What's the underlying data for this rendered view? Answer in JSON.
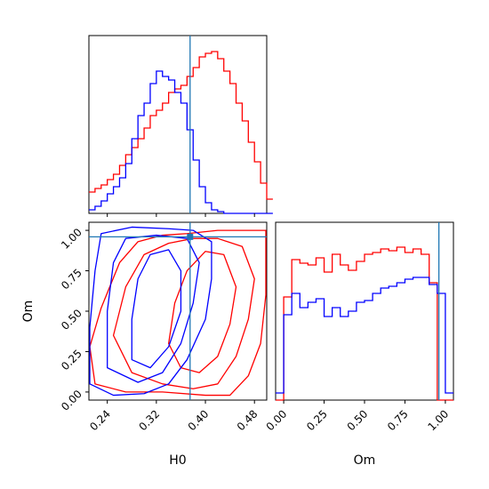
{
  "chart_data": [
    {
      "type": "histogram",
      "panel": "H0 marginal",
      "x": [
        0.21,
        0.22,
        0.23,
        0.24,
        0.25,
        0.26,
        0.27,
        0.28,
        0.29,
        0.3,
        0.31,
        0.32,
        0.33,
        0.34,
        0.35,
        0.36,
        0.37,
        0.38,
        0.39,
        0.4,
        0.41,
        0.42,
        0.43,
        0.44,
        0.45,
        0.46,
        0.47,
        0.48,
        0.49,
        0.5
      ],
      "series": [
        {
          "color": "#ff0000",
          "values": [
            0.12,
            0.14,
            0.16,
            0.19,
            0.22,
            0.27,
            0.33,
            0.37,
            0.42,
            0.48,
            0.55,
            0.58,
            0.62,
            0.68,
            0.7,
            0.72,
            0.77,
            0.82,
            0.88,
            0.9,
            0.91,
            0.87,
            0.8,
            0.73,
            0.62,
            0.52,
            0.4,
            0.29,
            0.17,
            0.08
          ]
        },
        {
          "color": "#0000ff",
          "values": [
            0.02,
            0.04,
            0.07,
            0.11,
            0.15,
            0.2,
            0.28,
            0.42,
            0.55,
            0.62,
            0.73,
            0.8,
            0.77,
            0.75,
            0.68,
            0.62,
            0.47,
            0.3,
            0.15,
            0.06,
            0.02,
            0.01,
            0.0,
            0.0,
            0.0,
            0.0,
            0.0,
            0.0,
            0.0,
            0.0
          ]
        }
      ],
      "xlim": [
        0.21,
        0.5
      ],
      "truth": 0.375
    },
    {
      "type": "contour",
      "panel": "Om vs H0",
      "xlabel": "H0",
      "ylabel": "Om",
      "xticks": [
        "0.24",
        "0.32",
        "0.40",
        "0.48"
      ],
      "yticks": [
        "0.00",
        "0.25",
        "0.50",
        "0.75",
        "1.00"
      ],
      "xlim": [
        0.21,
        0.5
      ],
      "ylim": [
        -0.05,
        1.05
      ],
      "truth": {
        "x": 0.375,
        "y": 0.96
      },
      "series": [
        {
          "color": "#ff0000",
          "levels": [
            [
              [
                0.21,
                0.28
              ],
              [
                0.23,
                0.52
              ],
              [
                0.26,
                0.8
              ],
              [
                0.29,
                0.93
              ],
              [
                0.33,
                0.97
              ],
              [
                0.37,
                0.98
              ],
              [
                0.42,
                1.0
              ],
              [
                0.46,
                1.0
              ],
              [
                0.5,
                1.0
              ],
              [
                0.5,
                0.6
              ],
              [
                0.49,
                0.3
              ],
              [
                0.47,
                0.1
              ],
              [
                0.44,
                -0.02
              ],
              [
                0.4,
                -0.02
              ],
              [
                0.33,
                0.0
              ],
              [
                0.27,
                0.0
              ],
              [
                0.22,
                0.05
              ]
            ],
            [
              [
                0.25,
                0.35
              ],
              [
                0.27,
                0.65
              ],
              [
                0.3,
                0.85
              ],
              [
                0.34,
                0.92
              ],
              [
                0.38,
                0.95
              ],
              [
                0.42,
                0.95
              ],
              [
                0.46,
                0.9
              ],
              [
                0.48,
                0.7
              ],
              [
                0.47,
                0.45
              ],
              [
                0.45,
                0.22
              ],
              [
                0.42,
                0.05
              ],
              [
                0.38,
                0.02
              ],
              [
                0.33,
                0.05
              ],
              [
                0.28,
                0.12
              ]
            ],
            [
              [
                0.34,
                0.3
              ],
              [
                0.35,
                0.55
              ],
              [
                0.37,
                0.75
              ],
              [
                0.4,
                0.87
              ],
              [
                0.43,
                0.85
              ],
              [
                0.45,
                0.65
              ],
              [
                0.44,
                0.42
              ],
              [
                0.42,
                0.22
              ],
              [
                0.39,
                0.12
              ],
              [
                0.36,
                0.15
              ]
            ]
          ]
        },
        {
          "color": "#0000ff",
          "levels": [
            [
              [
                0.21,
                0.05
              ],
              [
                0.21,
                0.4
              ],
              [
                0.22,
                0.75
              ],
              [
                0.23,
                0.98
              ],
              [
                0.28,
                1.02
              ],
              [
                0.34,
                1.01
              ],
              [
                0.38,
                1.0
              ],
              [
                0.41,
                0.93
              ],
              [
                0.41,
                0.7
              ],
              [
                0.4,
                0.45
              ],
              [
                0.37,
                0.2
              ],
              [
                0.34,
                0.05
              ],
              [
                0.3,
                -0.01
              ],
              [
                0.25,
                -0.02
              ]
            ],
            [
              [
                0.24,
                0.15
              ],
              [
                0.24,
                0.5
              ],
              [
                0.25,
                0.8
              ],
              [
                0.27,
                0.95
              ],
              [
                0.32,
                0.97
              ],
              [
                0.37,
                0.95
              ],
              [
                0.39,
                0.8
              ],
              [
                0.38,
                0.55
              ],
              [
                0.36,
                0.3
              ],
              [
                0.33,
                0.12
              ],
              [
                0.29,
                0.06
              ]
            ],
            [
              [
                0.28,
                0.2
              ],
              [
                0.28,
                0.45
              ],
              [
                0.29,
                0.7
              ],
              [
                0.31,
                0.85
              ],
              [
                0.34,
                0.88
              ],
              [
                0.36,
                0.75
              ],
              [
                0.36,
                0.5
              ],
              [
                0.34,
                0.28
              ],
              [
                0.31,
                0.15
              ]
            ]
          ]
        }
      ]
    },
    {
      "type": "histogram",
      "panel": "Om marginal",
      "xlabel": "Om",
      "xticks": [
        "0.00",
        "0.25",
        "0.50",
        "0.75",
        "1.00"
      ],
      "x": [
        -0.05,
        0.0,
        0.05,
        0.1,
        0.15,
        0.2,
        0.25,
        0.3,
        0.35,
        0.4,
        0.45,
        0.5,
        0.55,
        0.6,
        0.65,
        0.7,
        0.75,
        0.8,
        0.85,
        0.9,
        0.95,
        1.0,
        1.05
      ],
      "series": [
        {
          "color": "#ff0000",
          "values": [
            0.0,
            0.58,
            0.79,
            0.77,
            0.76,
            0.8,
            0.72,
            0.82,
            0.76,
            0.73,
            0.78,
            0.82,
            0.83,
            0.85,
            0.84,
            0.86,
            0.83,
            0.85,
            0.82,
            0.66,
            0.0,
            0.0
          ]
        },
        {
          "color": "#0000ff",
          "values": [
            0.04,
            0.48,
            0.6,
            0.52,
            0.55,
            0.57,
            0.47,
            0.52,
            0.47,
            0.5,
            0.55,
            0.56,
            0.6,
            0.63,
            0.64,
            0.66,
            0.68,
            0.69,
            0.69,
            0.65,
            0.6,
            0.04
          ]
        }
      ],
      "xlim": [
        -0.05,
        1.05
      ],
      "truth": 0.96
    }
  ]
}
